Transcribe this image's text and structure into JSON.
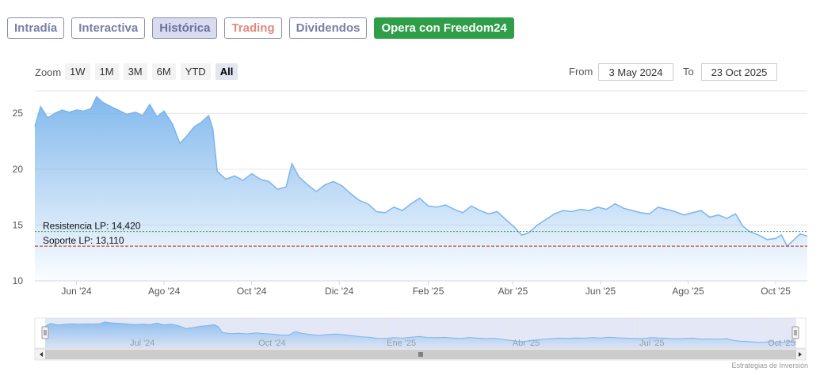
{
  "tabs": [
    {
      "label": "Intradía",
      "state": "default"
    },
    {
      "label": "Interactiva",
      "state": "default"
    },
    {
      "label": "Histórica",
      "state": "active"
    },
    {
      "label": "Trading",
      "state": "default"
    },
    {
      "label": "Dividendos",
      "state": "default"
    },
    {
      "label": "Opera con Freedom24",
      "state": "cta"
    }
  ],
  "zoom": {
    "label": "Zoom",
    "buttons": [
      "1W",
      "1M",
      "3M",
      "6M",
      "YTD",
      "All"
    ],
    "selected": "All"
  },
  "range": {
    "from_label": "From",
    "from_value": "3 May 2024",
    "to_label": "To",
    "to_value": "23 Oct 2025"
  },
  "chart_data": {
    "type": "area",
    "title": "",
    "xlabel": "",
    "ylabel": "",
    "xlim": [
      "2024-05-03",
      "2025-10-23"
    ],
    "ylim": [
      10,
      27
    ],
    "yticks": [
      10,
      15,
      20,
      25
    ],
    "xticks": [
      {
        "date": "2024-06-01",
        "label": "Jun '24"
      },
      {
        "date": "2024-08-01",
        "label": "Ago '24"
      },
      {
        "date": "2024-10-01",
        "label": "Oct '24"
      },
      {
        "date": "2024-12-01",
        "label": "Dic '24"
      },
      {
        "date": "2025-02-01",
        "label": "Feb '25"
      },
      {
        "date": "2025-04-01",
        "label": "Abr '25"
      },
      {
        "date": "2025-06-01",
        "label": "Jun '25"
      },
      {
        "date": "2025-08-01",
        "label": "Ago '25"
      },
      {
        "date": "2025-10-01",
        "label": "Oct '25"
      }
    ],
    "grid": true,
    "colors": {
      "line": "#7cb5ec",
      "fill_top": "#7cb5ec",
      "fill_bottom": "#ffffff"
    },
    "series": [
      {
        "x": [
          "2024-05-03",
          "2024-05-07",
          "2024-05-12",
          "2024-05-17",
          "2024-05-22",
          "2024-05-27",
          "2024-06-01",
          "2024-06-06",
          "2024-06-11",
          "2024-06-15",
          "2024-06-19",
          "2024-06-25",
          "2024-06-30",
          "2024-07-06",
          "2024-07-12",
          "2024-07-17",
          "2024-07-22",
          "2024-07-27",
          "2024-08-01",
          "2024-08-07",
          "2024-08-12",
          "2024-08-17",
          "2024-08-22",
          "2024-08-27",
          "2024-09-01",
          "2024-09-04",
          "2024-09-07",
          "2024-09-13",
          "2024-09-19",
          "2024-09-25",
          "2024-10-01",
          "2024-10-07",
          "2024-10-13",
          "2024-10-19",
          "2024-10-25",
          "2024-10-29",
          "2024-11-03",
          "2024-11-09",
          "2024-11-15",
          "2024-11-21",
          "2024-11-27",
          "2024-12-03",
          "2024-12-09",
          "2024-12-15",
          "2024-12-21",
          "2024-12-27",
          "2025-01-02",
          "2025-01-08",
          "2025-01-14",
          "2025-01-20",
          "2025-01-26",
          "2025-02-01",
          "2025-02-07",
          "2025-02-13",
          "2025-02-19",
          "2025-02-25",
          "2025-03-03",
          "2025-03-09",
          "2025-03-15",
          "2025-03-21",
          "2025-03-27",
          "2025-04-02",
          "2025-04-07",
          "2025-04-12",
          "2025-04-18",
          "2025-04-24",
          "2025-04-30",
          "2025-05-06",
          "2025-05-12",
          "2025-05-18",
          "2025-05-24",
          "2025-05-30",
          "2025-06-05",
          "2025-06-11",
          "2025-06-17",
          "2025-06-23",
          "2025-06-29",
          "2025-07-05",
          "2025-07-11",
          "2025-07-17",
          "2025-07-23",
          "2025-07-29",
          "2025-08-04",
          "2025-08-10",
          "2025-08-16",
          "2025-08-22",
          "2025-08-28",
          "2025-09-03",
          "2025-09-08",
          "2025-09-13",
          "2025-09-19",
          "2025-09-25",
          "2025-10-01",
          "2025-10-05",
          "2025-10-09",
          "2025-10-13",
          "2025-10-18",
          "2025-10-23"
        ],
        "values": [
          23.8,
          25.6,
          24.6,
          25.0,
          25.3,
          25.1,
          25.3,
          25.2,
          25.4,
          26.5,
          26.0,
          25.6,
          25.3,
          24.9,
          25.1,
          24.8,
          25.8,
          24.7,
          25.2,
          24.0,
          22.3,
          23.0,
          23.8,
          24.2,
          24.8,
          23.6,
          19.8,
          19.1,
          19.4,
          19.0,
          19.6,
          19.1,
          18.9,
          18.2,
          18.4,
          20.5,
          19.3,
          18.6,
          18.0,
          18.6,
          18.9,
          18.5,
          17.8,
          17.2,
          16.9,
          16.2,
          16.1,
          16.6,
          16.3,
          16.9,
          17.4,
          16.7,
          16.6,
          16.8,
          16.4,
          16.1,
          16.7,
          16.3,
          16.0,
          16.2,
          15.5,
          14.8,
          14.1,
          14.3,
          15.0,
          15.5,
          16.0,
          16.3,
          16.2,
          16.4,
          16.3,
          16.6,
          16.4,
          16.9,
          16.5,
          16.3,
          16.1,
          16.0,
          16.6,
          16.4,
          16.2,
          15.9,
          16.1,
          16.3,
          15.7,
          15.9,
          15.6,
          16.0,
          14.9,
          14.4,
          14.1,
          13.7,
          13.8,
          14.1,
          13.1,
          13.6,
          14.2,
          14.0
        ]
      }
    ],
    "annotations": [
      {
        "label": "Resistencia LP: 14,420",
        "value": 14.42,
        "style": "dotted",
        "color": "#2e9e48"
      },
      {
        "label": "Soporte LP: 13,110",
        "value": 13.11,
        "style": "dashed",
        "color": "#b22222"
      }
    ],
    "navigator": {
      "xticks": [
        {
          "date": "2024-07-01",
          "label": "Jul '24"
        },
        {
          "date": "2024-10-01",
          "label": "Oct '24"
        },
        {
          "date": "2025-01-01",
          "label": "Ene '25"
        },
        {
          "date": "2025-04-01",
          "label": "Abr '25"
        },
        {
          "date": "2025-07-01",
          "label": "Jul '25"
        },
        {
          "date": "2025-10-01",
          "label": "Oct '25"
        }
      ]
    },
    "credit": "Estrategias de Inversión"
  }
}
